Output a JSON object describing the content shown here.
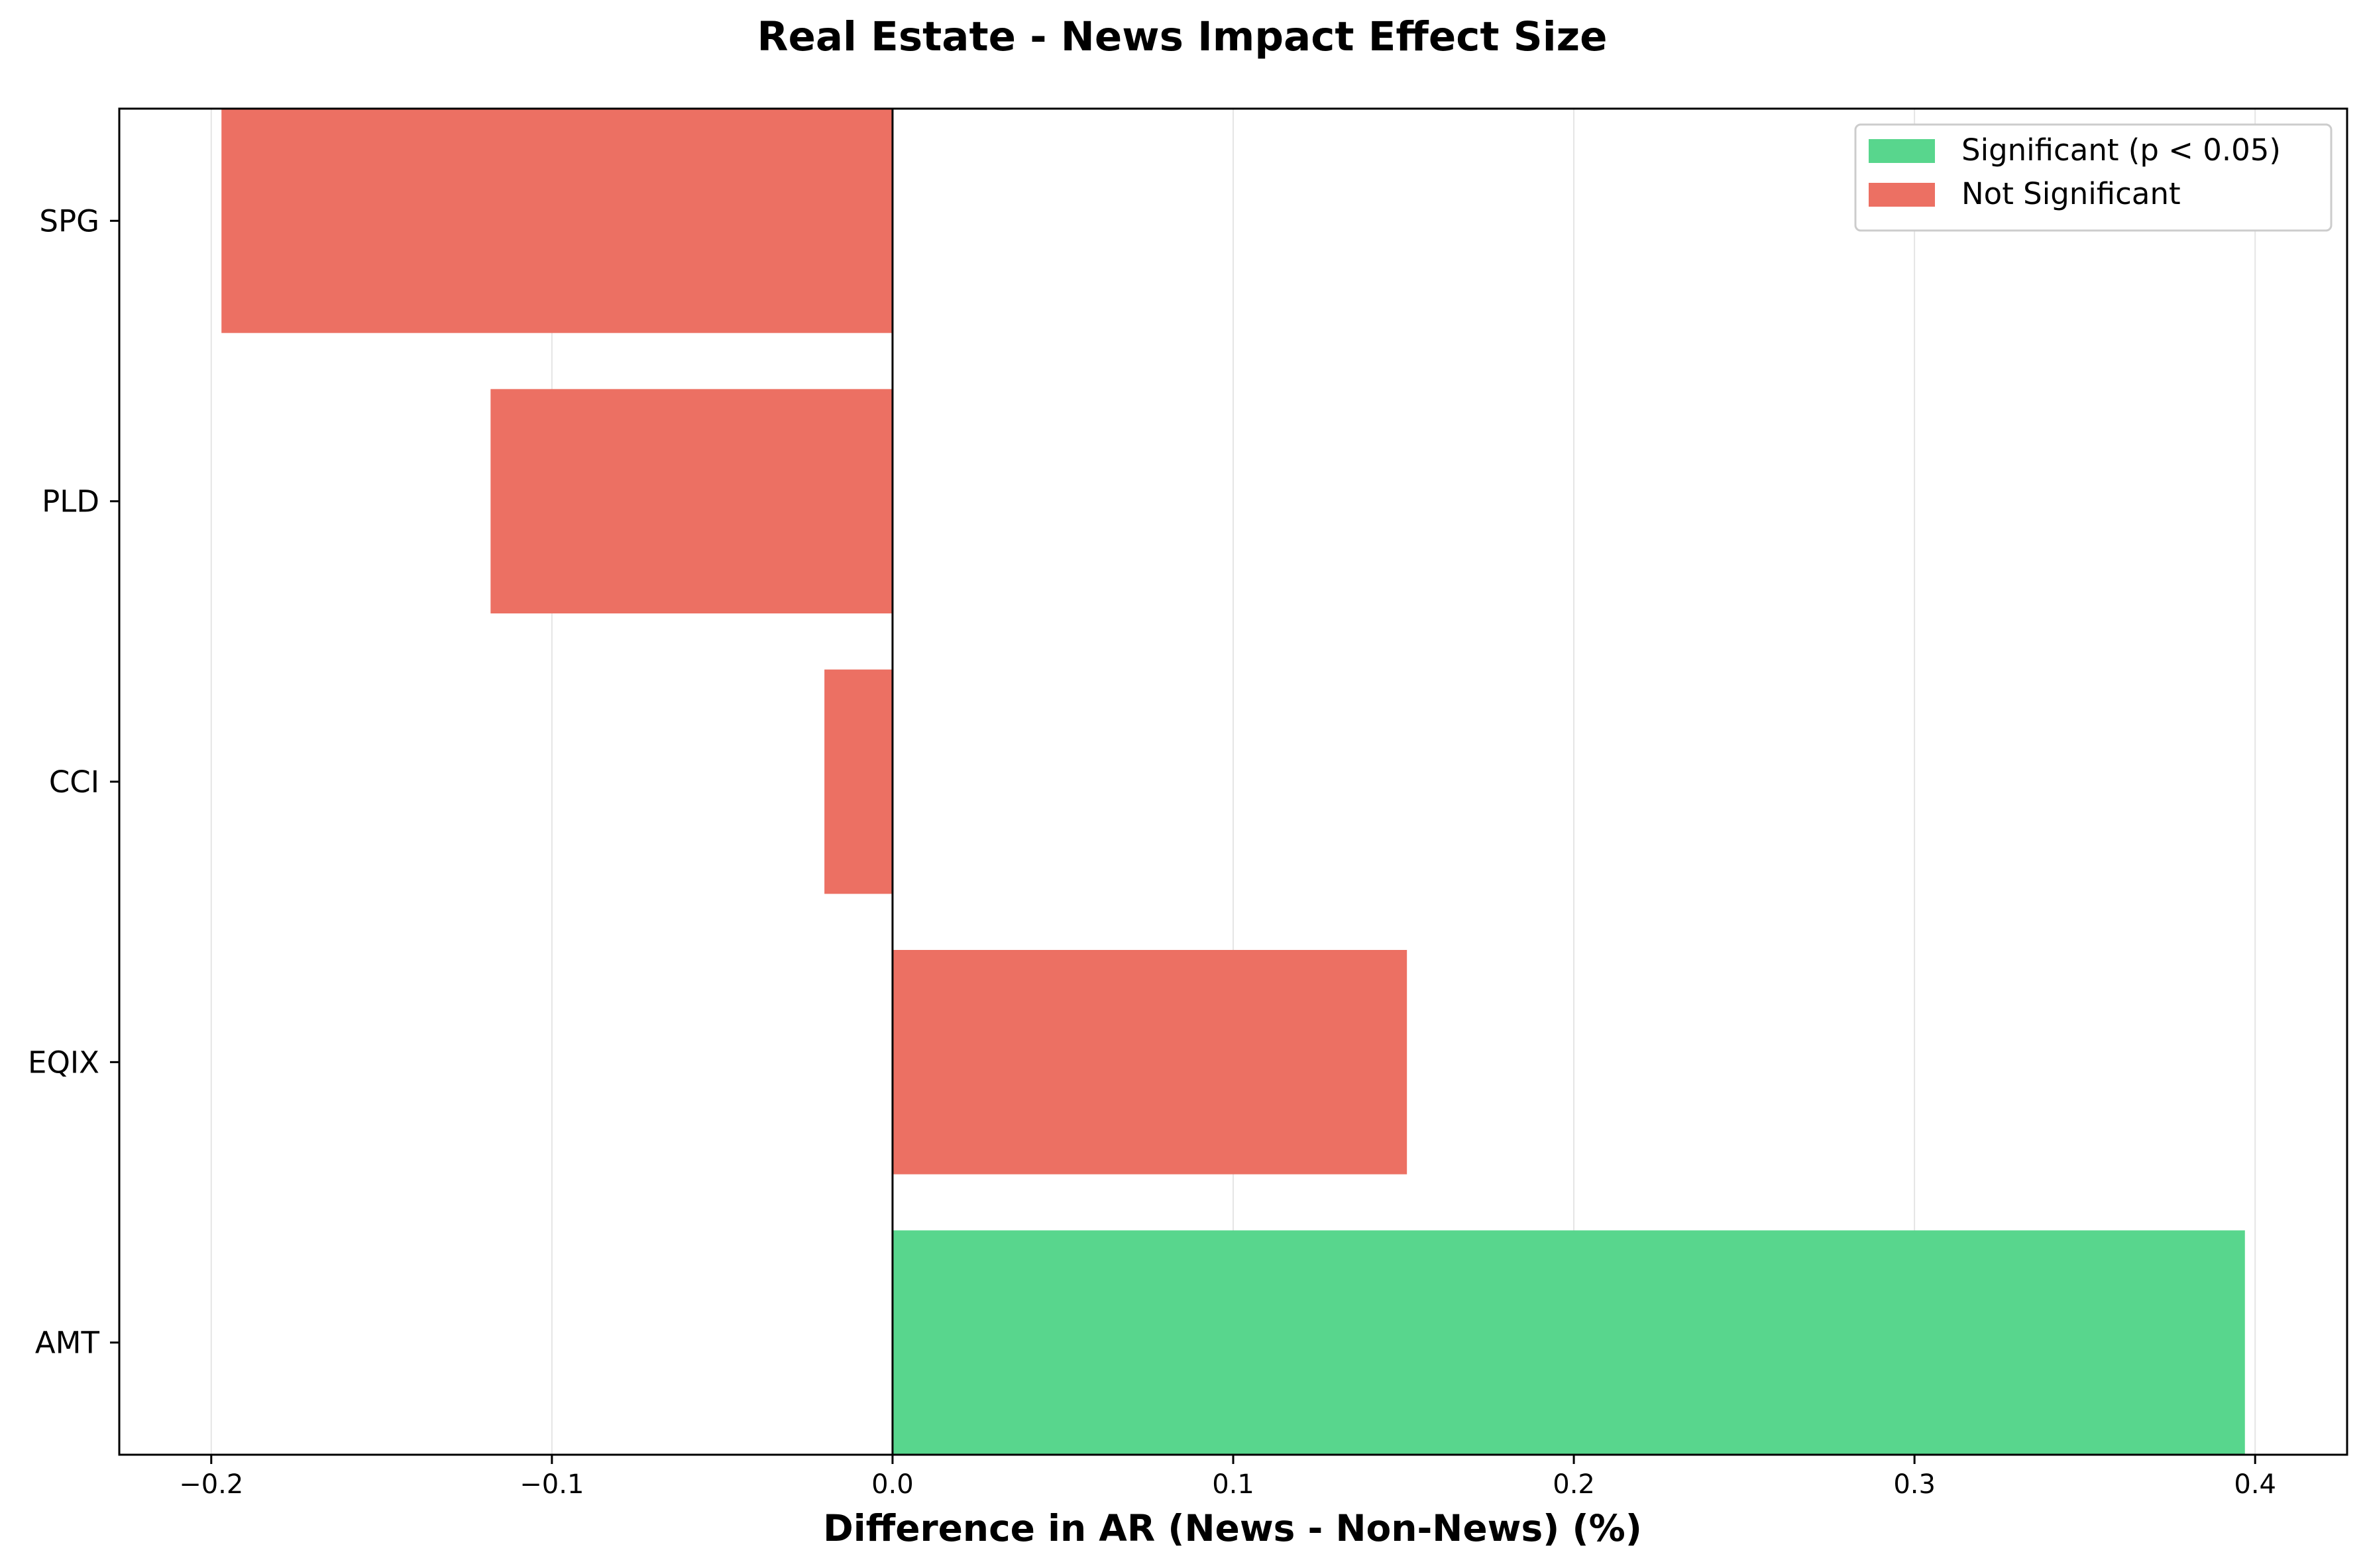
{
  "chart_data": {
    "type": "bar",
    "orientation": "horizontal",
    "title": "Real Estate - News Impact Effect Size",
    "xlabel": "Difference in AR (News - Non-News) (%)",
    "ylabel": "",
    "xlim": [
      -0.227,
      0.427
    ],
    "x_ticks": [
      -0.2,
      -0.1,
      0.0,
      0.1,
      0.2,
      0.3,
      0.4
    ],
    "x_tick_labels": [
      "−0.2",
      "−0.1",
      "0.0",
      "0.1",
      "0.2",
      "0.3",
      "0.4"
    ],
    "grid": "vertical",
    "zero_line": true,
    "categories": [
      "AMT",
      "EQIX",
      "CCI",
      "PLD",
      "SPG"
    ],
    "values": [
      0.397,
      0.151,
      -0.02,
      -0.118,
      -0.197
    ],
    "significant": [
      true,
      false,
      false,
      false,
      false
    ],
    "legend": {
      "placement": "top-right",
      "entries": [
        {
          "label": "Significant (p < 0.05)",
          "color": "#58d68d"
        },
        {
          "label": "Not Significant",
          "color": "#ec7063"
        }
      ]
    },
    "colors": {
      "significant": "#58d68d",
      "not_significant": "#ec7063",
      "grid": "#e5e5e5",
      "axis": "#000000"
    }
  }
}
